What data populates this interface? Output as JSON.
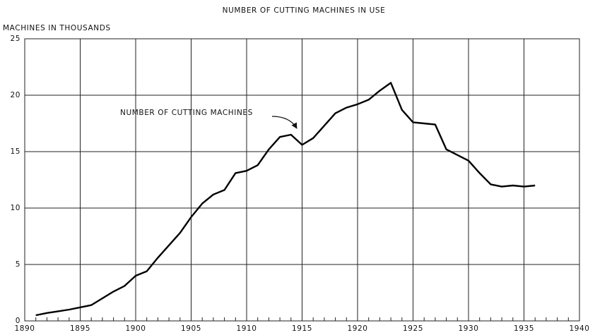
{
  "chart_data": {
    "type": "line",
    "title": "NUMBER OF CUTTING MACHINES IN USE",
    "y_label": "MACHINES IN THOUSANDS",
    "annotation": "NUMBER OF CUTTING MACHINES",
    "x": [
      1891,
      1892,
      1893,
      1894,
      1895,
      1896,
      1897,
      1898,
      1899,
      1900,
      1901,
      1902,
      1903,
      1904,
      1905,
      1906,
      1907,
      1908,
      1909,
      1910,
      1911,
      1912,
      1913,
      1914,
      1915,
      1916,
      1917,
      1918,
      1919,
      1920,
      1921,
      1922,
      1923,
      1924,
      1925,
      1926,
      1927,
      1928,
      1929,
      1930,
      1931,
      1932,
      1933,
      1934,
      1935,
      1936
    ],
    "series": [
      {
        "name": "NUMBER OF CUTTING MACHINES",
        "color": "#000000",
        "values": [
          0.5,
          0.7,
          0.85,
          1.0,
          1.2,
          1.4,
          2.0,
          2.6,
          3.1,
          4.0,
          4.4,
          5.6,
          6.7,
          7.8,
          9.2,
          10.4,
          11.2,
          11.6,
          13.1,
          13.3,
          13.8,
          15.2,
          16.3,
          16.5,
          15.6,
          16.2,
          17.3,
          18.4,
          18.9,
          19.2,
          19.6,
          20.4,
          21.1,
          18.7,
          17.6,
          17.5,
          17.4,
          15.2,
          14.7,
          14.2,
          13.1,
          12.1,
          11.9,
          12.0,
          11.9,
          12.0
        ]
      }
    ],
    "xlim": [
      1890,
      1940
    ],
    "xticks": [
      1890,
      1895,
      1900,
      1905,
      1910,
      1915,
      1920,
      1925,
      1930,
      1935,
      1940
    ],
    "ylim": [
      0,
      25
    ],
    "yticks": [
      0,
      5,
      10,
      15,
      20,
      25
    ],
    "grid": true
  }
}
